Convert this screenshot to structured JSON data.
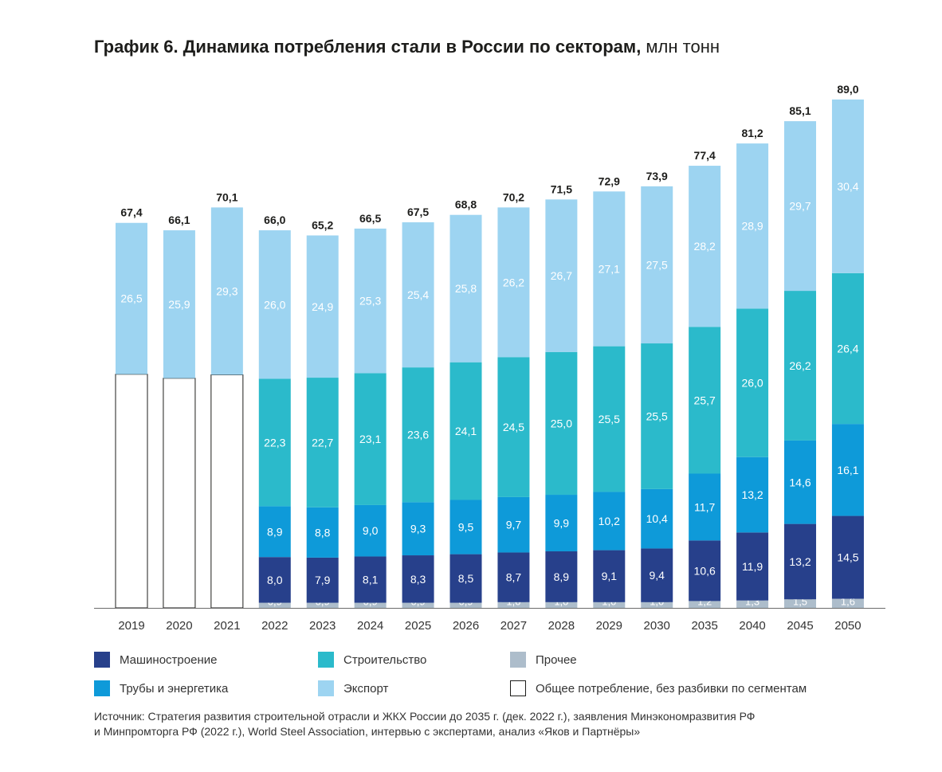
{
  "title": {
    "bold": "График 6. Динамика потребления стали в России по секторам,",
    "unit": " млн тонн"
  },
  "colors": {
    "mech": "#27408b",
    "pipes": "#0e9ad9",
    "constr": "#2bbacb",
    "export": "#9dd4f1",
    "other": "#adbdcb",
    "total": "#ffffff"
  },
  "chart_data": {
    "type": "bar",
    "stacked": true,
    "title": "График 6. Динамика потребления стали в России по секторам, млн тонн",
    "xlabel": "",
    "ylabel": "млн тонн",
    "ylim": [
      0,
      89
    ],
    "categories": [
      "2019",
      "2020",
      "2021",
      "2022",
      "2023",
      "2024",
      "2025",
      "2026",
      "2027",
      "2028",
      "2029",
      "2030",
      "2035",
      "2040",
      "2045",
      "2050"
    ],
    "totals": [
      "67,4",
      "66,1",
      "70,1",
      "66,0",
      "65,2",
      "66,5",
      "67,5",
      "68,8",
      "70,2",
      "71,5",
      "72,9",
      "73,9",
      "77,4",
      "81,2",
      "85,1",
      "89,0"
    ],
    "series": [
      {
        "key": "other",
        "name": "Прочее",
        "values": [
          null,
          null,
          null,
          0.9,
          0.9,
          0.9,
          0.9,
          0.9,
          1.0,
          1.0,
          1.0,
          1.0,
          1.2,
          1.3,
          1.5,
          1.6
        ],
        "labels": [
          "",
          "",
          "",
          "0,9",
          "0,9",
          "0,9",
          "0,9",
          "0,9",
          "1,0",
          "1,0",
          "1,0",
          "1,0",
          "1,2",
          "1,3",
          "1,5",
          "1,6"
        ]
      },
      {
        "key": "mech",
        "name": "Машиностроение",
        "values": [
          null,
          null,
          null,
          8.0,
          7.9,
          8.1,
          8.3,
          8.5,
          8.7,
          8.9,
          9.1,
          9.4,
          10.6,
          11.9,
          13.2,
          14.5
        ],
        "labels": [
          "",
          "",
          "",
          "8,0",
          "7,9",
          "8,1",
          "8,3",
          "8,5",
          "8,7",
          "8,9",
          "9,1",
          "9,4",
          "10,6",
          "11,9",
          "13,2",
          "14,5"
        ]
      },
      {
        "key": "pipes",
        "name": "Трубы и энергетика",
        "values": [
          null,
          null,
          null,
          8.9,
          8.8,
          9.0,
          9.3,
          9.5,
          9.7,
          9.9,
          10.2,
          10.4,
          11.7,
          13.2,
          14.6,
          16.1
        ],
        "labels": [
          "",
          "",
          "",
          "8,9",
          "8,8",
          "9,0",
          "9,3",
          "9,5",
          "9,7",
          "9,9",
          "10,2",
          "10,4",
          "11,7",
          "13,2",
          "14,6",
          "16,1"
        ]
      },
      {
        "key": "constr",
        "name": "Строительство",
        "values": [
          null,
          null,
          null,
          22.3,
          22.7,
          23.1,
          23.6,
          24.1,
          24.5,
          25.0,
          25.5,
          25.5,
          25.7,
          26.0,
          26.2,
          26.4
        ],
        "labels": [
          "",
          "",
          "",
          "22,3",
          "22,7",
          "23,1",
          "23,6",
          "24,1",
          "24,5",
          "25,0",
          "25,5",
          "25,5",
          "25,7",
          "26,0",
          "26,2",
          "26,4"
        ]
      },
      {
        "key": "total",
        "name": "Общее потребление, без разбивки по сегментам",
        "values": [
          40.9,
          40.2,
          40.8,
          null,
          null,
          null,
          null,
          null,
          null,
          null,
          null,
          null,
          null,
          null,
          null,
          null
        ],
        "labels": [
          "",
          "",
          "",
          "",
          "",
          "",
          "",
          "",
          "",
          "",
          "",
          "",
          "",
          "",
          "",
          ""
        ]
      },
      {
        "key": "export",
        "name": "Экспорт",
        "values": [
          26.5,
          25.9,
          29.3,
          26.0,
          24.9,
          25.3,
          25.4,
          25.8,
          26.2,
          26.7,
          27.1,
          27.5,
          28.2,
          28.9,
          29.7,
          30.4
        ],
        "labels": [
          "26,5",
          "25,9",
          "29,3",
          "26,0",
          "24,9",
          "25,3",
          "25,4",
          "25,8",
          "26,2",
          "26,7",
          "27,1",
          "27,5",
          "28,2",
          "28,9",
          "29,7",
          "30,4"
        ]
      }
    ],
    "legend_position": "bottom"
  },
  "legend": {
    "mech": "Машиностроение",
    "pipes": "Трубы и энергетика",
    "constr": "Строительство",
    "export": "Экспорт",
    "other": "Прочее",
    "total": "Общее потребление, без разбивки по сегментам"
  },
  "source": {
    "line1": "Источник: Стратегия развития строительной отрасли и ЖКХ России до 2035 г. (дек. 2022 г.), заявления Минэкономразвития РФ",
    "line2": "и Минпромторга РФ (2022 г.), World Steel Association, интервью с экспертами, анализ «Яков и Партнёры»"
  }
}
